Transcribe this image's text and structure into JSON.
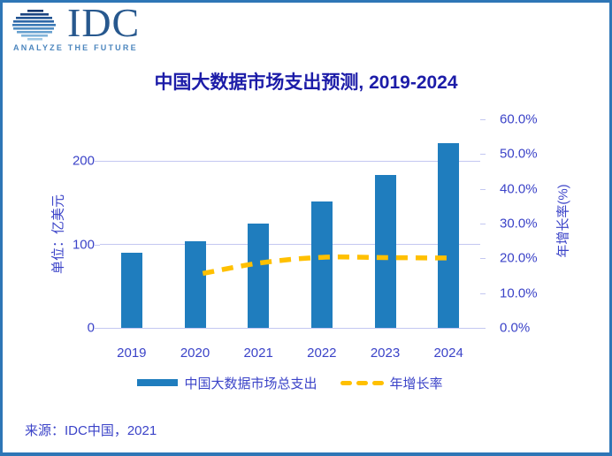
{
  "page": {
    "background": "#FFFFFF",
    "border_color": "#2E76B6"
  },
  "logo": {
    "brand": "IDC",
    "tagline": "ANALYZE THE FUTURE",
    "brand_color": "#27588E",
    "tagline_color": "#4C86BE"
  },
  "title": {
    "text": "中国大数据市场支出预测, 2019-2024",
    "color": "#1C1CA8"
  },
  "legend": {
    "items": [
      {
        "label": "中国大数据市场总支出",
        "swatch": "bar",
        "color": "#1F7DBE"
      },
      {
        "label": "年增长率",
        "swatch": "dashed-line",
        "color": "#FFC000"
      }
    ]
  },
  "source": {
    "text": "来源：IDC中国，2021"
  },
  "chart_data": {
    "type": "combo",
    "categories": [
      "2019",
      "2020",
      "2021",
      "2022",
      "2023",
      "2024"
    ],
    "series": [
      {
        "name": "中国大数据市场总支出",
        "type": "bar",
        "axis": "left",
        "color": "#1F7DBE",
        "values": [
          90,
          104,
          125,
          151,
          183,
          221
        ]
      },
      {
        "name": "年增长率",
        "type": "line",
        "dashed": true,
        "axis": "right",
        "color": "#FFC000",
        "unit": "%",
        "values": [
          null,
          15.2,
          18.6,
          20.3,
          20.2,
          20.1
        ]
      }
    ],
    "left_axis": {
      "label": "单位：亿美元",
      "range": [
        0,
        250
      ],
      "ticks": [
        0,
        100,
        200
      ],
      "tick_labels": [
        "0",
        "100",
        "200"
      ]
    },
    "right_axis": {
      "label": "年增长率(%)",
      "range": [
        0,
        60
      ],
      "ticks": [
        0,
        10,
        20,
        30,
        40,
        50,
        60
      ],
      "tick_labels": [
        "0.0%",
        "10.0%",
        "20.0%",
        "30.0%",
        "40.0%",
        "50.0%",
        "60.0%"
      ]
    },
    "grid": "horizontal lines at left-axis ticks",
    "legend_position": "bottom",
    "colors": {
      "grid": "#C3C7F1",
      "tick_text": "#3B43C8",
      "title_text": "#1C1CA8"
    }
  }
}
